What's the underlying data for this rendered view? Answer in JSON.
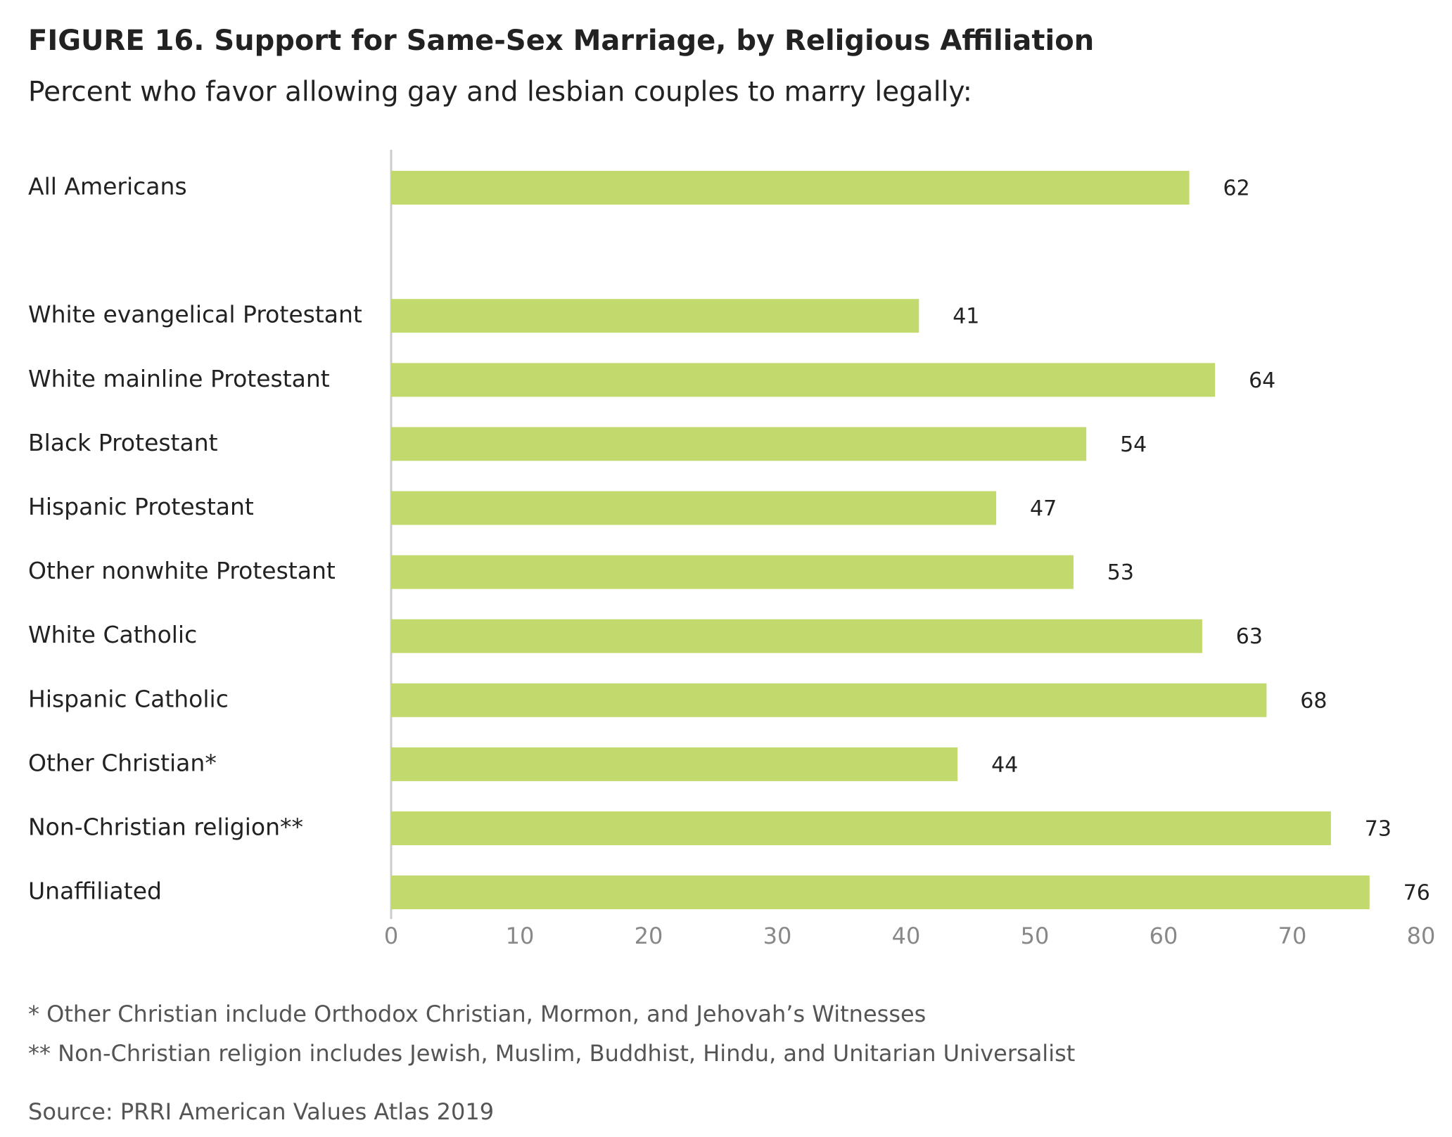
{
  "chart_data": {
    "type": "bar",
    "orientation": "horizontal",
    "title": "FIGURE 16. Support for Same-Sex Marriage, by Religious Affiliation",
    "subtitle": "Percent who favor allowing gay and lesbian couples to marry legally:",
    "categories": [
      "All Americans",
      null,
      "White evangelical Protestant",
      "White mainline Protestant",
      "Black Protestant",
      "Hispanic Protestant",
      "Other nonwhite Protestant",
      "White Catholic",
      "Hispanic Catholic",
      "Other Christian*",
      "Non-Christian religion**",
      "Unaffiliated"
    ],
    "values": [
      62,
      null,
      41,
      64,
      54,
      47,
      53,
      63,
      68,
      44,
      73,
      76
    ],
    "color": "#c2d96e",
    "xlim": [
      0,
      80
    ],
    "xticks": [
      0,
      10,
      20,
      30,
      40,
      50,
      60,
      70,
      80
    ],
    "grid": false,
    "notes": [
      "* Other Christian include Orthodox Christian, Mormon, and Jehovah’s Witnesses",
      "** Non-Christian religion includes Jewish, Muslim, Buddhist, Hindu, and Unitarian Universalist"
    ],
    "source": "Source: PRRI American Values Atlas 2019"
  }
}
